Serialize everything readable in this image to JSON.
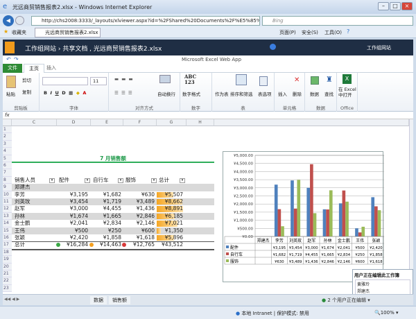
{
  "browser": {
    "title": "光远商贸销售报表2.xlsx - Windows Internet Explorer",
    "url": "http://chs2008:3333/_layouts/xlviewer.aspx?id=%2FShared%20Documents%2F%E5%85%89%E8%BF%9C",
    "search_placeholder": "Bing",
    "favorites": "收藏夹",
    "tab": "光远商贸销售报表2.xlsx",
    "menu": [
      "页面(P)",
      "安全(S)",
      "工具(O)"
    ]
  },
  "sharepoint": {
    "breadcrumb": "工作组网站 ›  共享文档 , 光远商贸销售报表2.xlsx",
    "site": "工作组网站"
  },
  "app": {
    "title": "Microsoft Excel Web App"
  },
  "tabs": [
    "文件",
    "主页",
    "插入"
  ],
  "ribbon": {
    "clipboard": {
      "paste": "粘贴",
      "cut": "剪切",
      "copy": "复制",
      "label": "剪贴板"
    },
    "font": {
      "size": "11",
      "label": "字体"
    },
    "align": {
      "wrap": "自动换行",
      "label": "对齐方式"
    },
    "number": {
      "format": "数字格式",
      "label": "数字"
    },
    "table": {
      "as_table": "作为表",
      "sort": "排序和筛选",
      "options": "表选项",
      "label": "表"
    },
    "cells": {
      "insert": "插入",
      "delete": "删除",
      "label": "单元格"
    },
    "data": {
      "data": "数据",
      "find": "查找",
      "label": "数据"
    },
    "office": {
      "open": "在 Excel 中打开",
      "label": "Office"
    }
  },
  "grid": {
    "columns": [
      "C",
      "D",
      "E",
      "F",
      "G",
      "H"
    ],
    "rows": [
      "1",
      "2",
      "3",
      "4",
      "5",
      "6",
      "7",
      "8",
      "9",
      "10",
      "11",
      "12",
      "13",
      "14",
      "15",
      "16",
      "17",
      "18",
      "19",
      "20",
      "21",
      "22",
      "23"
    ],
    "title": "7 月销售额",
    "headers": [
      "销售人员",
      "配件",
      "自行车",
      "服饰",
      "总计"
    ],
    "data": [
      [
        "郑建杰",
        "",
        "",
        "",
        ""
      ],
      [
        "李芳",
        "¥3,195",
        "¥1,682",
        "¥630",
        "¥5,507"
      ],
      [
        "刘英玫",
        "¥3,454",
        "¥1,719",
        "¥3,489",
        "¥8,662"
      ],
      [
        "赵军",
        "¥3,000",
        "¥4,455",
        "¥1,436",
        "¥8,891"
      ],
      [
        "孙林",
        "¥1,674",
        "¥1,665",
        "¥2,846",
        "¥6,185"
      ],
      [
        "金士鹏",
        "¥2,041",
        "¥2,834",
        "¥2,146",
        "¥7,021"
      ],
      [
        "王伟",
        "¥500",
        "¥250",
        "¥600",
        "¥1,350"
      ],
      [
        "张颖",
        "¥2,420",
        "¥1,858",
        "¥1,618",
        "¥5,896"
      ]
    ],
    "totals": [
      "总计",
      "¥16,284",
      "¥14,463",
      "¥12,765",
      "¥43,512"
    ],
    "total_bar_values": [
      0,
      5507,
      8662,
      8891,
      6185,
      7021,
      1350,
      5896
    ]
  },
  "chart_data": {
    "type": "bar",
    "categories": [
      "郑建杰",
      "李芳",
      "刘英玫",
      "赵军",
      "孙林",
      "金士鹏",
      "王伟",
      "张颖"
    ],
    "series": [
      {
        "name": "配件",
        "color": "#4f81bd",
        "values": [
          null,
          3195,
          3454,
          3000,
          1674,
          2041,
          500,
          2420
        ],
        "labels": [
          "",
          "¥3,195",
          "¥3,454",
          "¥3,000",
          "¥1,674",
          "¥2,041",
          "¥500",
          "¥2,420"
        ]
      },
      {
        "name": "自行车",
        "color": "#c0504d",
        "values": [
          null,
          1682,
          1719,
          4455,
          1665,
          2834,
          250,
          1858
        ],
        "labels": [
          "",
          "¥1,682",
          "¥1,719",
          "¥4,455",
          "¥1,665",
          "¥2,834",
          "¥250",
          "¥1,858"
        ]
      },
      {
        "name": "服饰",
        "color": "#9bbb59",
        "values": [
          null,
          630,
          3489,
          1436,
          2846,
          2146,
          600,
          1618
        ],
        "labels": [
          "",
          "¥630",
          "¥3,489",
          "¥1,436",
          "¥2,846",
          "¥2,146",
          "¥600",
          "¥1,618"
        ]
      }
    ],
    "yticks": [
      "¥0.00",
      "¥500.00",
      "¥1,000.00",
      "¥1,500.00",
      "¥2,000.00",
      "¥2,500.00",
      "¥3,000.00",
      "¥3,500.00",
      "¥4,000.00",
      "¥4,500.00",
      "¥5,000.00"
    ],
    "ylim": [
      0,
      5000
    ],
    "grid": true,
    "legend": "data-table"
  },
  "popup": {
    "title": "用户正在编辑此工作簿",
    "users": [
      "黄雅玲",
      "郑建杰"
    ]
  },
  "sheets": [
    "数据",
    "销售额"
  ],
  "editing": "2 个用户正在编辑",
  "status": {
    "zone": "本地 Intranet | 保护模式: 禁用",
    "zoom": "100%"
  }
}
